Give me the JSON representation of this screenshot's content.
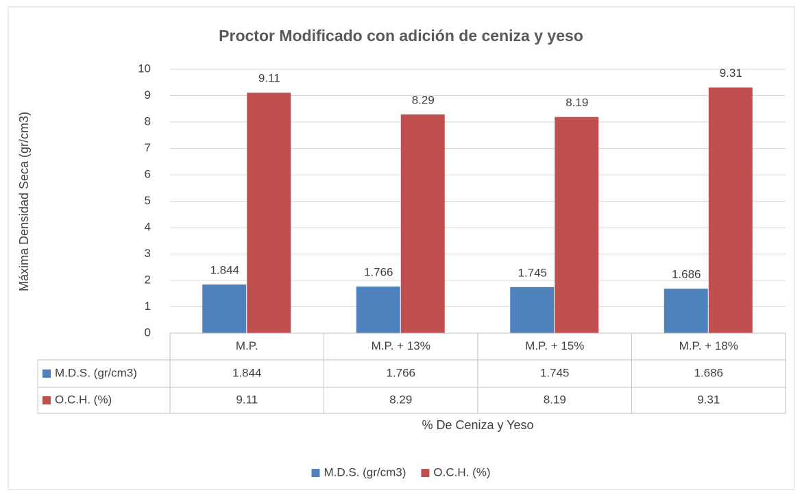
{
  "chart_data": {
    "type": "bar",
    "title": "Proctor Modificado con adición de ceniza y yeso",
    "y_label": "Máxima Densidad Seca (gr/cm3)",
    "x_label": "% De Ceniza y Yeso",
    "categories": [
      "M.P.",
      "M.P. + 13%",
      "M.P. + 15%",
      "M.P. + 18%"
    ],
    "series": [
      {
        "name": "M.D.S. (gr/cm3)",
        "color": "#4f81bd",
        "values": [
          1.844,
          1.766,
          1.745,
          1.686
        ]
      },
      {
        "name": "O.C.H. (%)",
        "color": "#c0504d",
        "values": [
          9.11,
          8.29,
          8.19,
          9.31
        ]
      }
    ],
    "ylim": [
      0,
      10
    ],
    "yticks": [
      0,
      1,
      2,
      3,
      4,
      5,
      6,
      7,
      8,
      9,
      10
    ],
    "grid": true,
    "legend": "bottom",
    "data_table": true
  }
}
